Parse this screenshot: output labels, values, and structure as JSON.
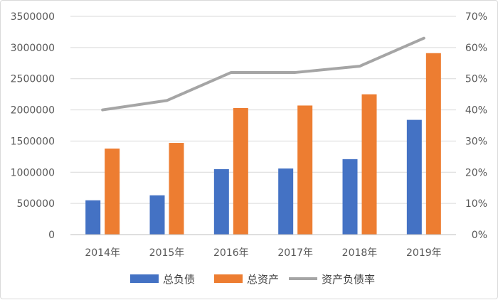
{
  "chart_data": {
    "type": "bar",
    "categories": [
      "2014年",
      "2015年",
      "2016年",
      "2017年",
      "2018年",
      "2019年"
    ],
    "series": [
      {
        "name": "总负债",
        "type": "bar",
        "axis": "left",
        "color": "#4472C4",
        "values": [
          550000,
          630000,
          1050000,
          1060000,
          1210000,
          1840000
        ]
      },
      {
        "name": "总资产",
        "type": "bar",
        "axis": "left",
        "color": "#ED7D31",
        "values": [
          1380000,
          1470000,
          2030000,
          2070000,
          2250000,
          2910000
        ]
      },
      {
        "name": "资产负债率",
        "type": "line",
        "axis": "right",
        "color": "#A5A5A5",
        "values": [
          0.4,
          0.43,
          0.52,
          0.52,
          0.54,
          0.63
        ]
      }
    ],
    "y_left": {
      "min": 0,
      "max": 3500000,
      "ticks": [
        "0",
        "500000",
        "1000000",
        "1500000",
        "2000000",
        "2500000",
        "3000000",
        "3500000"
      ]
    },
    "y_right": {
      "min": 0,
      "max": 0.7,
      "ticks": [
        "0%",
        "10%",
        "20%",
        "30%",
        "40%",
        "50%",
        "60%",
        "70%"
      ]
    },
    "grid": true,
    "legend": "bottom",
    "title": "",
    "xlabel": "",
    "ylabel": ""
  }
}
